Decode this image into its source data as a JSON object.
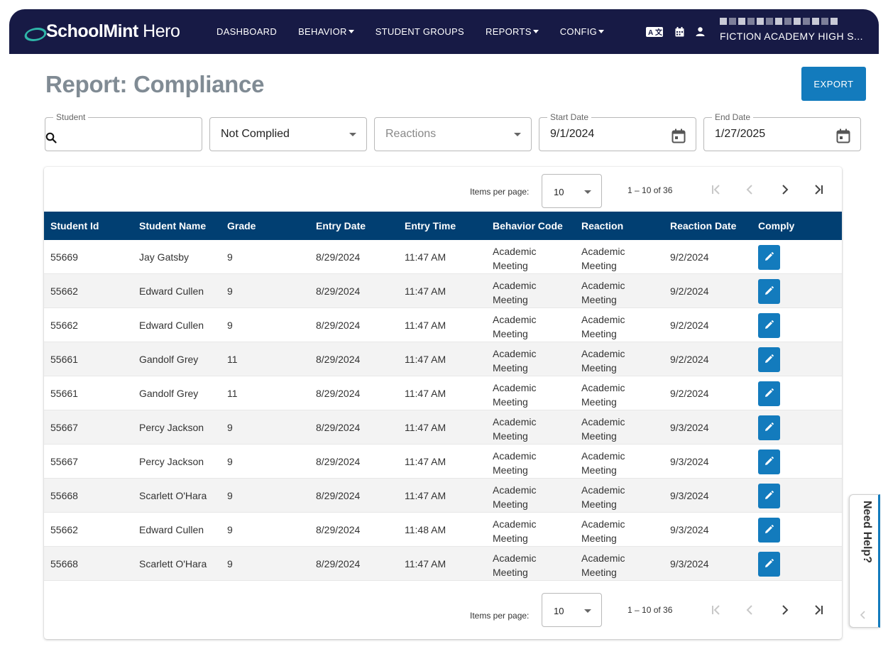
{
  "brand": {
    "bold": "SchoolMint",
    "light": " Hero",
    "accent": "#2fb5a8"
  },
  "nav": {
    "items": [
      {
        "label": "DASHBOARD",
        "dropdown": false
      },
      {
        "label": "BEHAVIOR",
        "dropdown": true
      },
      {
        "label": "STUDENT GROUPS",
        "dropdown": false
      },
      {
        "label": "REPORTS",
        "dropdown": true
      },
      {
        "label": "CONFIG",
        "dropdown": true
      }
    ],
    "icons": [
      "translate-icon",
      "calendar-icon",
      "user-icon"
    ],
    "school": "FICTION ACADEMY HIGH S..."
  },
  "page": {
    "title": "Report: Compliance",
    "export_label": "EXPORT"
  },
  "filters": {
    "student_label": "Student",
    "student_value": "",
    "status_value": "Not Complied",
    "reactions_placeholder": "Reactions",
    "start_label": "Start Date",
    "start_value": "9/1/2024",
    "end_label": "End Date",
    "end_value": "1/27/2025"
  },
  "pager": {
    "items_label": "Items per page:",
    "page_size": "10",
    "range": "1 – 10 of 36"
  },
  "table": {
    "columns": [
      "Student Id",
      "Student Name",
      "Grade",
      "Entry Date",
      "Entry Time",
      "Behavior Code",
      "Reaction",
      "Reaction Date",
      "Comply"
    ],
    "rows": [
      {
        "id": "55669",
        "name": "Jay Gatsby",
        "grade": "9",
        "entry_date": "8/29/2024",
        "entry_time": "11:47 AM",
        "behavior_code": [
          "Academic",
          "Meeting"
        ],
        "reaction": [
          "Academic",
          "Meeting"
        ],
        "reaction_date": "9/2/2024"
      },
      {
        "id": "55662",
        "name": "Edward Cullen",
        "grade": "9",
        "entry_date": "8/29/2024",
        "entry_time": "11:47 AM",
        "behavior_code": [
          "Academic",
          "Meeting"
        ],
        "reaction": [
          "Academic",
          "Meeting"
        ],
        "reaction_date": "9/2/2024"
      },
      {
        "id": "55662",
        "name": "Edward Cullen",
        "grade": "9",
        "entry_date": "8/29/2024",
        "entry_time": "11:47 AM",
        "behavior_code": [
          "Academic",
          "Meeting"
        ],
        "reaction": [
          "Academic",
          "Meeting"
        ],
        "reaction_date": "9/2/2024"
      },
      {
        "id": "55661",
        "name": "Gandolf Grey",
        "grade": "11",
        "entry_date": "8/29/2024",
        "entry_time": "11:47 AM",
        "behavior_code": [
          "Academic",
          "Meeting"
        ],
        "reaction": [
          "Academic",
          "Meeting"
        ],
        "reaction_date": "9/2/2024"
      },
      {
        "id": "55661",
        "name": "Gandolf Grey",
        "grade": "11",
        "entry_date": "8/29/2024",
        "entry_time": "11:47 AM",
        "behavior_code": [
          "Academic",
          "Meeting"
        ],
        "reaction": [
          "Academic",
          "Meeting"
        ],
        "reaction_date": "9/2/2024"
      },
      {
        "id": "55667",
        "name": "Percy Jackson",
        "grade": "9",
        "entry_date": "8/29/2024",
        "entry_time": "11:47 AM",
        "behavior_code": [
          "Academic",
          "Meeting"
        ],
        "reaction": [
          "Academic",
          "Meeting"
        ],
        "reaction_date": "9/3/2024"
      },
      {
        "id": "55667",
        "name": "Percy Jackson",
        "grade": "9",
        "entry_date": "8/29/2024",
        "entry_time": "11:47 AM",
        "behavior_code": [
          "Academic",
          "Meeting"
        ],
        "reaction": [
          "Academic",
          "Meeting"
        ],
        "reaction_date": "9/3/2024"
      },
      {
        "id": "55668",
        "name": "Scarlett O'Hara",
        "grade": "9",
        "entry_date": "8/29/2024",
        "entry_time": "11:47 AM",
        "behavior_code": [
          "Academic",
          "Meeting"
        ],
        "reaction": [
          "Academic",
          "Meeting"
        ],
        "reaction_date": "9/3/2024"
      },
      {
        "id": "55662",
        "name": "Edward Cullen",
        "grade": "9",
        "entry_date": "8/29/2024",
        "entry_time": "11:48 AM",
        "behavior_code": [
          "Academic",
          "Meeting"
        ],
        "reaction": [
          "Academic",
          "Meeting"
        ],
        "reaction_date": "9/3/2024"
      },
      {
        "id": "55668",
        "name": "Scarlett O'Hara",
        "grade": "9",
        "entry_date": "8/29/2024",
        "entry_time": "11:47 AM",
        "behavior_code": [
          "Academic",
          "Meeting"
        ],
        "reaction": [
          "Academic",
          "Meeting"
        ],
        "reaction_date": "9/3/2024"
      }
    ]
  },
  "help": {
    "label": "Need Help?"
  },
  "colors": {
    "nav": "#171a45",
    "header": "#013f72",
    "primary": "#137bbd"
  }
}
